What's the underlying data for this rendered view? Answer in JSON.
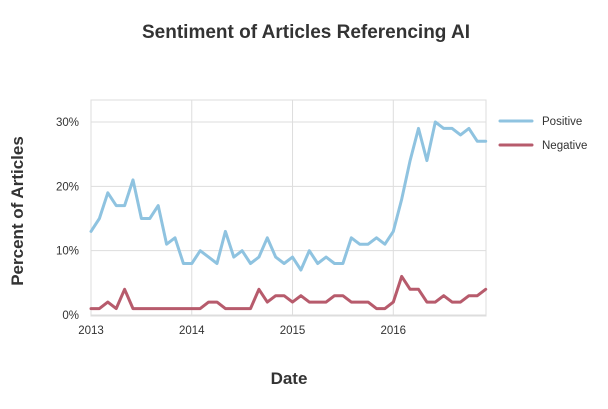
{
  "chart_data": {
    "type": "line",
    "title": "Sentiment of Articles Referencing AI",
    "xlabel": "Date",
    "ylabel": "Percent of Articles",
    "xlim": [
      2013.0,
      2016.92
    ],
    "ylim": [
      0,
      33
    ],
    "x_ticks": [
      2013,
      2014,
      2015,
      2016
    ],
    "x_tick_labels": [
      "2013",
      "2014",
      "2015",
      "2016"
    ],
    "y_ticks": [
      0,
      10,
      20,
      30
    ],
    "y_tick_labels": [
      "0%",
      "10%",
      "20%",
      "30%"
    ],
    "grid": true,
    "legend_position": "right",
    "x": [
      2013.0,
      2013.0833,
      2013.1667,
      2013.25,
      2013.3333,
      2013.4167,
      2013.5,
      2013.5833,
      2013.6667,
      2013.75,
      2013.8333,
      2013.9167,
      2014.0,
      2014.0833,
      2014.1667,
      2014.25,
      2014.3333,
      2014.4167,
      2014.5,
      2014.5833,
      2014.6667,
      2014.75,
      2014.8333,
      2014.9167,
      2015.0,
      2015.0833,
      2015.1667,
      2015.25,
      2015.3333,
      2015.4167,
      2015.5,
      2015.5833,
      2015.6667,
      2015.75,
      2015.8333,
      2015.9167,
      2016.0,
      2016.0833,
      2016.1667,
      2016.25,
      2016.3333,
      2016.4167,
      2016.5,
      2016.5833,
      2016.6667,
      2016.75,
      2016.8333,
      2016.9167
    ],
    "series": [
      {
        "name": "Positive",
        "color": "#8fc3e0",
        "values": [
          13,
          15,
          19,
          17,
          17,
          21,
          15,
          15,
          17,
          11,
          12,
          8,
          8,
          10,
          9,
          8,
          13,
          9,
          10,
          8,
          9,
          12,
          9,
          8,
          9,
          7,
          10,
          8,
          9,
          8,
          8,
          12,
          11,
          11,
          12,
          11,
          13,
          18,
          24,
          29,
          24,
          30,
          29,
          29,
          28,
          29,
          27,
          27
        ]
      },
      {
        "name": "Negative",
        "color": "#b75b6c",
        "values": [
          1,
          1,
          2,
          1,
          4,
          1,
          1,
          1,
          1,
          1,
          1,
          1,
          1,
          1,
          2,
          2,
          1,
          1,
          1,
          1,
          4,
          2,
          3,
          3,
          2,
          3,
          2,
          2,
          2,
          3,
          3,
          2,
          2,
          2,
          1,
          1,
          2,
          6,
          4,
          4,
          2,
          2,
          3,
          2,
          2,
          3,
          3,
          4
        ]
      }
    ]
  }
}
